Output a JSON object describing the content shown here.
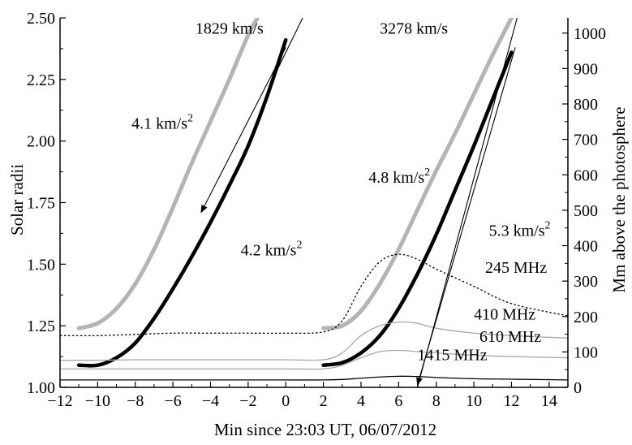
{
  "chart_data": {
    "type": "line",
    "xlabel": "Min since 23:03 UT, 06/07/2012",
    "ylabel_left": "Solar radii",
    "ylabel_right": "Mm above the photosphere",
    "xlim": [
      -12,
      15
    ],
    "ylim_left": [
      1.0,
      2.5
    ],
    "ylim_right": [
      0,
      1043
    ],
    "xticks": [
      -12,
      -10,
      -8,
      -6,
      -4,
      -2,
      0,
      2,
      4,
      6,
      8,
      10,
      12,
      14
    ],
    "xtick_labels": [
      "−12",
      "−10",
      "−8",
      "−6",
      "−4",
      "−2",
      "0",
      "2",
      "4",
      "6",
      "8",
      "10",
      "12",
      "14"
    ],
    "yticks_left": [
      1.0,
      1.25,
      1.5,
      1.75,
      2.0,
      2.25,
      2.5
    ],
    "ytick_labels_left": [
      "1.00",
      "1.25",
      "1.50",
      "1.75",
      "2.00",
      "2.25",
      "2.50"
    ],
    "yticks_right": [
      0,
      100,
      200,
      300,
      400,
      500,
      600,
      700,
      800,
      900,
      1000
    ],
    "ytick_labels_right": [
      "0",
      "100",
      "200",
      "300",
      "400",
      "500",
      "600",
      "700",
      "800",
      "900",
      "1000"
    ],
    "series": [
      {
        "style": "gray-thick",
        "x": [
          -11,
          -10,
          -9,
          -8,
          -7,
          -6,
          -5,
          -4,
          -3,
          -2,
          -1.5
        ],
        "y": [
          1.24,
          1.26,
          1.32,
          1.42,
          1.56,
          1.73,
          1.91,
          2.08,
          2.25,
          2.43,
          2.5
        ]
      },
      {
        "style": "black-thick",
        "x": [
          -11,
          -10,
          -9,
          -8,
          -7,
          -6,
          -5,
          -4,
          -3,
          -2,
          -1,
          0
        ],
        "y": [
          1.09,
          1.09,
          1.12,
          1.18,
          1.28,
          1.4,
          1.53,
          1.67,
          1.82,
          1.98,
          2.18,
          2.41
        ]
      },
      {
        "style": "gray-thick",
        "x": [
          2,
          3,
          4,
          5,
          6,
          7,
          8,
          9,
          10,
          11,
          12
        ],
        "y": [
          1.24,
          1.25,
          1.31,
          1.42,
          1.56,
          1.72,
          1.88,
          2.03,
          2.19,
          2.35,
          2.5
        ]
      },
      {
        "style": "black-thick",
        "x": [
          2,
          3,
          4,
          5,
          6,
          7,
          8,
          9,
          10,
          11,
          12
        ],
        "y": [
          1.09,
          1.1,
          1.14,
          1.21,
          1.32,
          1.46,
          1.62,
          1.8,
          1.98,
          2.17,
          2.36
        ]
      },
      {
        "name": "245 MHz",
        "style": "dotted",
        "x": [
          -12,
          -10,
          -8,
          -6,
          -4,
          -2,
          0,
          2,
          3,
          4,
          5,
          6,
          7,
          8,
          10,
          12,
          15
        ],
        "y": [
          1.21,
          1.21,
          1.215,
          1.22,
          1.22,
          1.22,
          1.22,
          1.225,
          1.27,
          1.41,
          1.51,
          1.54,
          1.52,
          1.48,
          1.41,
          1.34,
          1.29
        ]
      },
      {
        "name": "410 MHz",
        "style": "gray-thin",
        "x": [
          -12,
          -10,
          -8,
          -6,
          -4,
          -2,
          0,
          2,
          3,
          4,
          5,
          6,
          7,
          8,
          10,
          12,
          15
        ],
        "y": [
          1.11,
          1.11,
          1.112,
          1.112,
          1.112,
          1.112,
          1.112,
          1.112,
          1.14,
          1.21,
          1.25,
          1.265,
          1.26,
          1.24,
          1.22,
          1.21,
          1.2
        ]
      },
      {
        "name": "610 MHz",
        "style": "gray-thin",
        "x": [
          -12,
          -10,
          -8,
          -6,
          -4,
          -2,
          0,
          2,
          3,
          4,
          5,
          6,
          7,
          8,
          10,
          12,
          15
        ],
        "y": [
          1.075,
          1.075,
          1.075,
          1.075,
          1.075,
          1.075,
          1.075,
          1.075,
          1.09,
          1.12,
          1.145,
          1.15,
          1.145,
          1.14,
          1.13,
          1.125,
          1.12
        ]
      },
      {
        "name": "1415 MHz",
        "style": "black-thin",
        "x": [
          -12,
          -10,
          -8,
          -6,
          -4,
          -2,
          0,
          2,
          3,
          4,
          5,
          6,
          7,
          8,
          10,
          12,
          15
        ],
        "y": [
          1.03,
          1.03,
          1.03,
          1.03,
          1.03,
          1.03,
          1.03,
          1.03,
          1.032,
          1.037,
          1.042,
          1.045,
          1.044,
          1.04,
          1.035,
          1.033,
          1.03
        ]
      },
      {
        "style": "black-thin-line",
        "x": [
          -0.7,
          0.9
        ],
        "y": [
          2.25,
          2.5
        ]
      },
      {
        "style": "black-thin-line",
        "x": [
          7.0,
          12.3
        ],
        "y": [
          1.0,
          2.5
        ]
      }
    ],
    "arrows": [
      {
        "from": [
          0.0,
          2.38
        ],
        "to": [
          -4.5,
          1.71
        ]
      },
      {
        "from": [
          12.2,
          2.38
        ],
        "to": [
          7.0,
          1.01
        ]
      }
    ],
    "annotations": [
      {
        "text": "1829 km/s",
        "x": -4.8,
        "y": 2.435
      },
      {
        "text": "3278 km/s",
        "x": 5.0,
        "y": 2.435
      },
      {
        "text": "4.1 km/s",
        "sup": "2",
        "x": -8.2,
        "y": 2.05
      },
      {
        "text": "4.2 km/s",
        "sup": "2",
        "x": -2.4,
        "y": 1.535
      },
      {
        "text": "4.8 km/s",
        "sup": "2",
        "x": 4.4,
        "y": 1.83
      },
      {
        "text": "5.3 km/s",
        "sup": "2",
        "x": 10.8,
        "y": 1.615
      },
      {
        "text": "245 MHz",
        "x": 10.6,
        "y": 1.465
      },
      {
        "text": "410 MHz",
        "x": 10.0,
        "y": 1.275
      },
      {
        "text": "610 MHz",
        "x": 10.3,
        "y": 1.185
      },
      {
        "text": "1415 MHz",
        "x": 7.0,
        "y": 1.11
      }
    ]
  }
}
